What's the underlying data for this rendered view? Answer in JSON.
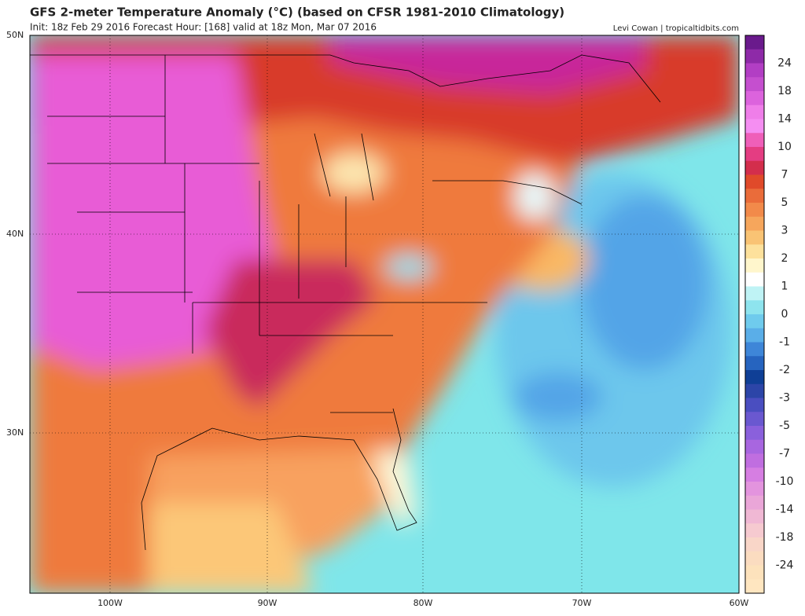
{
  "header": {
    "title": "GFS 2-meter Temperature Anomaly (°C) (based on CFSR 1981-2010 Climatology)",
    "subtitle": "Init: 18z Feb 29 2016   Forecast Hour: [168]   valid at 18z Mon, Mar 07 2016",
    "credit": "Levi Cowan | tropicaltidbits.com"
  },
  "map": {
    "lat_labels": [
      "50N",
      "40N",
      "30N"
    ],
    "lon_labels": [
      "100W",
      "90W",
      "80W",
      "70W",
      "60W"
    ]
  },
  "colorbar": {
    "labels": [
      "24",
      "18",
      "14",
      "10",
      "7",
      "5",
      "3",
      "2",
      "1",
      "0",
      "-1",
      "-2",
      "-3",
      "-5",
      "-7",
      "-10",
      "-14",
      "-18",
      "-24"
    ]
  }
}
